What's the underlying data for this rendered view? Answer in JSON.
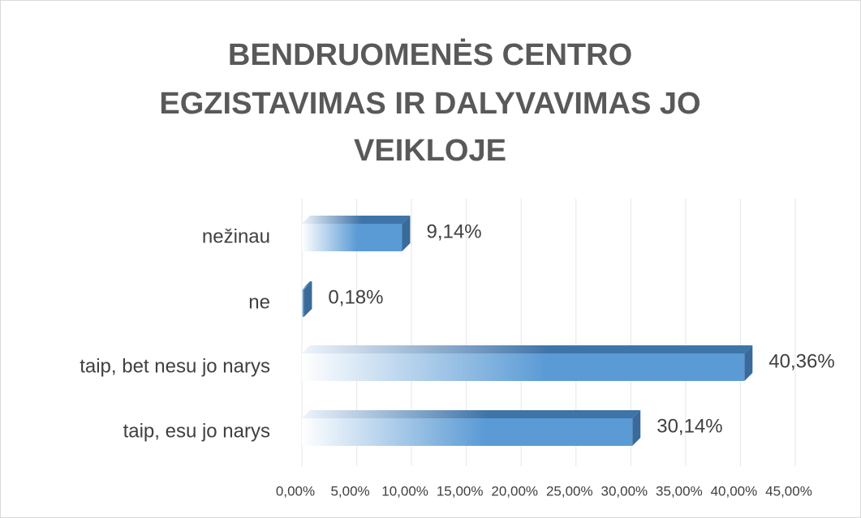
{
  "chart_data": {
    "type": "hbar3d",
    "title": [
      "BENDRUOMENĖS CENTRO",
      "EGZISTAVIMAS IR DALYVAVIMAS JO",
      "VEIKLOJE"
    ],
    "categories": [
      "nežinau",
      "ne",
      "taip, bet nesu jo narys",
      "taip, esu jo narys"
    ],
    "values": [
      9.14,
      0.18,
      40.36,
      30.14
    ],
    "value_labels": [
      "9,14%",
      "0,18%",
      "40,36%",
      "30,14%"
    ],
    "color": "#5b9bd5",
    "xlim": [
      0,
      45
    ],
    "xticks": [
      {
        "value": 0,
        "label": "0,00%"
      },
      {
        "value": 5,
        "label": "5,00%"
      },
      {
        "value": 10,
        "label": "10,00%"
      },
      {
        "value": 15,
        "label": "15,00%"
      },
      {
        "value": 20,
        "label": "20,00%"
      },
      {
        "value": 25,
        "label": "25,00%"
      },
      {
        "value": 30,
        "label": "30,00%"
      },
      {
        "value": 35,
        "label": "35,00%"
      },
      {
        "value": 40,
        "label": "40,00%"
      },
      {
        "value": 45,
        "label": "45,00%"
      }
    ],
    "grid": true
  }
}
